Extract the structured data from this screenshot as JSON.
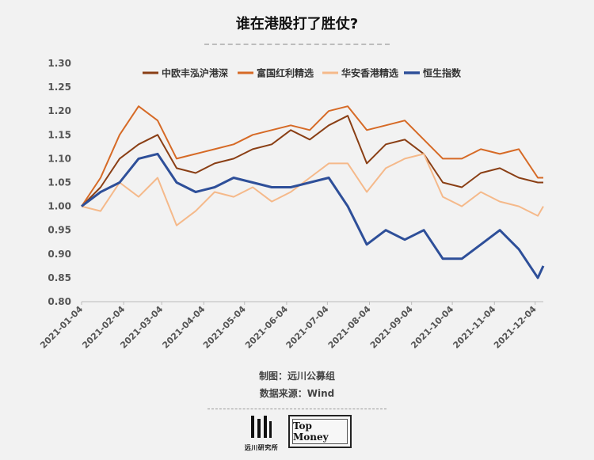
{
  "page": {
    "title": "谁在港股打了胜仗?",
    "credit_line1": "制图：远川公募组",
    "credit_line2": "数据来源：Wind",
    "logo_left_text": "远川研究所",
    "logo_right_text": "Top Money"
  },
  "chart_data": {
    "type": "line",
    "title": "谁在港股打了胜仗?",
    "xlabel": "",
    "ylabel": "",
    "ylim": [
      0.8,
      1.3
    ],
    "yticks": [
      "0.80",
      "0.85",
      "0.90",
      "0.95",
      "1.00",
      "1.05",
      "1.10",
      "1.15",
      "1.20",
      "1.25",
      "1.30"
    ],
    "xticks": [
      "2021-01-04",
      "2021-02-04",
      "2021-03-04",
      "2021-04-04",
      "2021-05-04",
      "2021-06-04",
      "2021-07-04",
      "2021-08-04",
      "2021-09-04",
      "2021-10-04",
      "2021-11-04",
      "2021-12-04"
    ],
    "x": [
      "2021-01-04",
      "2021-01-18",
      "2021-02-01",
      "2021-02-15",
      "2021-03-01",
      "2021-03-15",
      "2021-03-29",
      "2021-04-12",
      "2021-04-26",
      "2021-05-10",
      "2021-05-24",
      "2021-06-07",
      "2021-06-21",
      "2021-07-05",
      "2021-07-19",
      "2021-08-02",
      "2021-08-16",
      "2021-08-30",
      "2021-09-13",
      "2021-09-27",
      "2021-10-11",
      "2021-10-25",
      "2021-11-08",
      "2021-11-22",
      "2021-12-06",
      "2021-12-10"
    ],
    "legend_position": "top",
    "grid": false,
    "series": [
      {
        "name": "中欧丰泓沪港深",
        "color": "#8a3f15",
        "values": [
          1.0,
          1.04,
          1.1,
          1.13,
          1.15,
          1.08,
          1.07,
          1.09,
          1.1,
          1.12,
          1.13,
          1.16,
          1.14,
          1.17,
          1.19,
          1.09,
          1.13,
          1.14,
          1.11,
          1.05,
          1.04,
          1.07,
          1.08,
          1.06,
          1.05,
          1.05
        ]
      },
      {
        "name": "富国红利精选",
        "color": "#d66a26",
        "values": [
          1.0,
          1.06,
          1.15,
          1.21,
          1.18,
          1.1,
          1.11,
          1.12,
          1.13,
          1.15,
          1.16,
          1.17,
          1.16,
          1.2,
          1.21,
          1.16,
          1.17,
          1.18,
          1.14,
          1.1,
          1.1,
          1.12,
          1.11,
          1.12,
          1.06,
          1.06
        ]
      },
      {
        "name": "华安香港精选",
        "color": "#f5b98a",
        "values": [
          1.0,
          0.99,
          1.05,
          1.02,
          1.06,
          0.96,
          0.99,
          1.03,
          1.02,
          1.04,
          1.01,
          1.03,
          1.06,
          1.09,
          1.09,
          1.03,
          1.08,
          1.1,
          1.11,
          1.02,
          1.0,
          1.03,
          1.01,
          1.0,
          0.98,
          1.0
        ]
      },
      {
        "name": "恒生指数",
        "color": "#2e4f99",
        "values": [
          1.0,
          1.03,
          1.05,
          1.1,
          1.11,
          1.05,
          1.03,
          1.04,
          1.06,
          1.05,
          1.04,
          1.04,
          1.05,
          1.06,
          1.0,
          0.92,
          0.95,
          0.93,
          0.95,
          0.89,
          0.89,
          0.92,
          0.95,
          0.91,
          0.85,
          0.875
        ]
      }
    ]
  }
}
